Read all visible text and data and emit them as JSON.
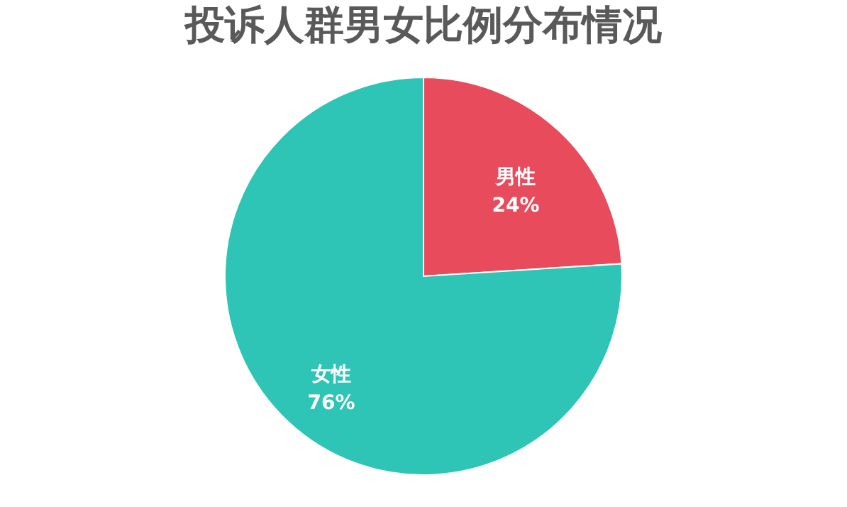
{
  "chart_data": {
    "type": "pie",
    "title": "投诉人群男女比例分布情况",
    "categories": [
      "男性",
      "女性"
    ],
    "values": [
      24,
      76
    ],
    "colors": [
      "#e84c5c",
      "#2ec4b6"
    ],
    "value_labels": [
      "24%",
      "76%"
    ],
    "legend": false
  }
}
